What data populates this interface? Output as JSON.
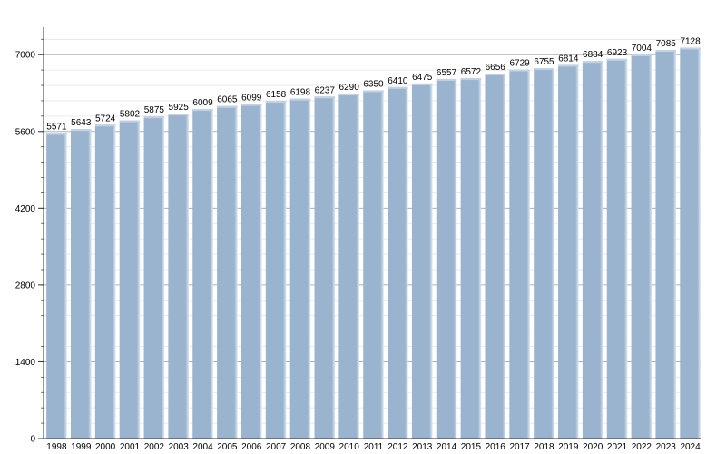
{
  "chart_data": {
    "type": "bar",
    "categories": [
      "1998",
      "1999",
      "2000",
      "2001",
      "2002",
      "2003",
      "2004",
      "2005",
      "2006",
      "2007",
      "2008",
      "2009",
      "2010",
      "2011",
      "2012",
      "2013",
      "2014",
      "2015",
      "2016",
      "2017",
      "2018",
      "2019",
      "2020",
      "2021",
      "2022",
      "2023",
      "2024"
    ],
    "values": [
      5571,
      5643,
      5724,
      5802,
      5875,
      5925,
      6009,
      6065,
      6099,
      6158,
      6198,
      6237,
      6290,
      6350,
      6410,
      6475,
      6557,
      6572,
      6656,
      6729,
      6755,
      6814,
      6884,
      6923,
      7004,
      7085,
      7128
    ],
    "y_ticks": [
      "0",
      "1400",
      "2800",
      "4200",
      "5600",
      "7000"
    ],
    "title": "",
    "xlabel": "",
    "ylabel": "",
    "ylim": [
      0,
      7500
    ],
    "grid": true,
    "bar_color": "#9ab4cf",
    "bar_top_color": "#c3d2e3",
    "grid_color": "#b0b0b0"
  }
}
